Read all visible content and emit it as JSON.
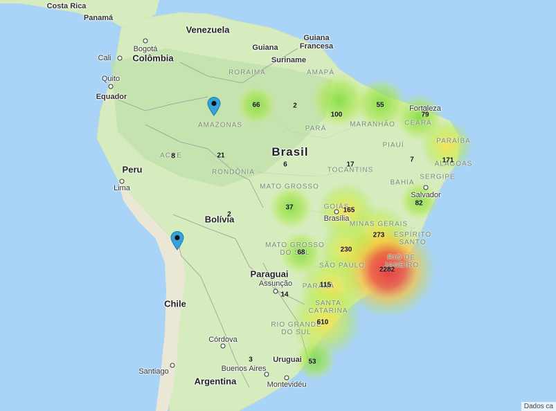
{
  "colors": {
    "ocean": "#a9d3f7",
    "land": "#d6ecbf",
    "forest": "#b6d9a0",
    "desert": "#ece8d8",
    "border": "#8f8f8f"
  },
  "countries": [
    {
      "id": "costa-rica",
      "label": "Costa Rica"
    },
    {
      "id": "panama",
      "label": "Panamá"
    },
    {
      "id": "venezuela",
      "label": "Venezuela"
    },
    {
      "id": "guiana",
      "label": "Guiana"
    },
    {
      "id": "guiana-francesa",
      "label": "Guiana\nFrancesa"
    },
    {
      "id": "suriname",
      "label": "Suriname"
    },
    {
      "id": "colombia",
      "label": "Colômbia"
    },
    {
      "id": "equador",
      "label": "Equador"
    },
    {
      "id": "brasil",
      "label": "Brasil"
    },
    {
      "id": "peru",
      "label": "Peru"
    },
    {
      "id": "bolivia",
      "label": "Bolívia"
    },
    {
      "id": "paraguai",
      "label": "Paraguai"
    },
    {
      "id": "chile",
      "label": "Chile"
    },
    {
      "id": "uruguai",
      "label": "Uruguai"
    },
    {
      "id": "argentina",
      "label": "Argentina"
    }
  ],
  "states": [
    {
      "id": "roraima",
      "label": "RORAIMA"
    },
    {
      "id": "amapa",
      "label": "AMAPÁ"
    },
    {
      "id": "amazonas",
      "label": "AMAZONAS"
    },
    {
      "id": "para",
      "label": "PARÁ"
    },
    {
      "id": "maranhao",
      "label": "MARANHÃO"
    },
    {
      "id": "ceara",
      "label": "CEARÁ"
    },
    {
      "id": "piaui",
      "label": "PIAUÍ"
    },
    {
      "id": "paraiba",
      "label": "PARAÍBA"
    },
    {
      "id": "alagoas",
      "label": "ALAGOAS"
    },
    {
      "id": "sergipe",
      "label": "SERGIPE"
    },
    {
      "id": "bahia",
      "label": "BAHIA"
    },
    {
      "id": "tocantins",
      "label": "TOCANTINS"
    },
    {
      "id": "acre",
      "label": "ACRE"
    },
    {
      "id": "rondonia",
      "label": "RONDÔNIA"
    },
    {
      "id": "mato-grosso",
      "label": "MATO GROSSO"
    },
    {
      "id": "goias",
      "label": "GOIÁS"
    },
    {
      "id": "minas-gerais",
      "label": "MINAS GERAIS"
    },
    {
      "id": "espirito-santo",
      "label": "ESPÍRITO\nSANTO"
    },
    {
      "id": "mato-grosso-do-sul",
      "label": "MATO GROSSO\nDO SUL"
    },
    {
      "id": "sao-paulo",
      "label": "SÃO PAULO"
    },
    {
      "id": "rio-de-janeiro",
      "label": "RIO DE\nJANEIRO"
    },
    {
      "id": "parana",
      "label": "PARANÁ"
    },
    {
      "id": "santa-catarina",
      "label": "SANTA\nCATARINA"
    },
    {
      "id": "rio-grande-do-sul",
      "label": "RIO GRANDE\nDO SUL"
    }
  ],
  "cities": [
    {
      "id": "bogota",
      "label": "Bogotá"
    },
    {
      "id": "cali",
      "label": "Cali"
    },
    {
      "id": "quito",
      "label": "Quito"
    },
    {
      "id": "lima",
      "label": "Lima"
    },
    {
      "id": "brasilia",
      "label": "Brasília"
    },
    {
      "id": "fortaleza",
      "label": "Fortaleza"
    },
    {
      "id": "salvador",
      "label": "Salvador"
    },
    {
      "id": "assuncao",
      "label": "Assunção"
    },
    {
      "id": "cordova",
      "label": "Córdova"
    },
    {
      "id": "santiago",
      "label": "Santiago"
    },
    {
      "id": "buenos-aires",
      "label": "Buenos Aires"
    },
    {
      "id": "montevideu",
      "label": "Montevidéu"
    }
  ],
  "clusters": [
    {
      "id": "roraima",
      "value": 66,
      "heat": 0.35
    },
    {
      "id": "amapa",
      "value": 2,
      "heat": 0
    },
    {
      "id": "para",
      "value": 100,
      "heat": 0.4
    },
    {
      "id": "maranhao",
      "value": 55,
      "heat": 0.3
    },
    {
      "id": "ceara",
      "value": 79,
      "heat": 0.35
    },
    {
      "id": "paraiba",
      "value": 171,
      "heat": 0.45
    },
    {
      "id": "acre",
      "value": 8,
      "heat": 0
    },
    {
      "id": "amazonas",
      "value": 21,
      "heat": 0
    },
    {
      "id": "rondonia",
      "value": 6,
      "heat": 0
    },
    {
      "id": "tocantins",
      "value": 17,
      "heat": 0
    },
    {
      "id": "sergipe",
      "value": 7,
      "heat": 0
    },
    {
      "id": "bahia",
      "value": 82,
      "heat": 0.3
    },
    {
      "id": "bolivia",
      "value": 2,
      "heat": 0
    },
    {
      "id": "mato-grosso",
      "value": 37,
      "heat": 0.25
    },
    {
      "id": "goias",
      "value": 165,
      "heat": 0.45
    },
    {
      "id": "minas-gerais",
      "value": 273,
      "heat": 0.5
    },
    {
      "id": "mato-grosso-do-sul",
      "value": 68,
      "heat": 0.3
    },
    {
      "id": "sao-paulo",
      "value": 230,
      "heat": 0.5
    },
    {
      "id": "rio-de-janeiro",
      "value": 2282,
      "heat": 1
    },
    {
      "id": "parana",
      "value": 115,
      "heat": 0.45
    },
    {
      "id": "paraguai",
      "value": 14,
      "heat": 0
    },
    {
      "id": "santa-catarina",
      "value": 610,
      "heat": 0.55
    },
    {
      "id": "argentina",
      "value": 3,
      "heat": 0
    },
    {
      "id": "rio-grande-do-sul",
      "value": 53,
      "heat": 0.35
    }
  ],
  "markers": [
    {
      "id": "amazonas-marker",
      "icon": "map-pin-icon"
    },
    {
      "id": "chile-marker",
      "icon": "map-pin-icon"
    }
  ],
  "attribution": "Dados ca"
}
